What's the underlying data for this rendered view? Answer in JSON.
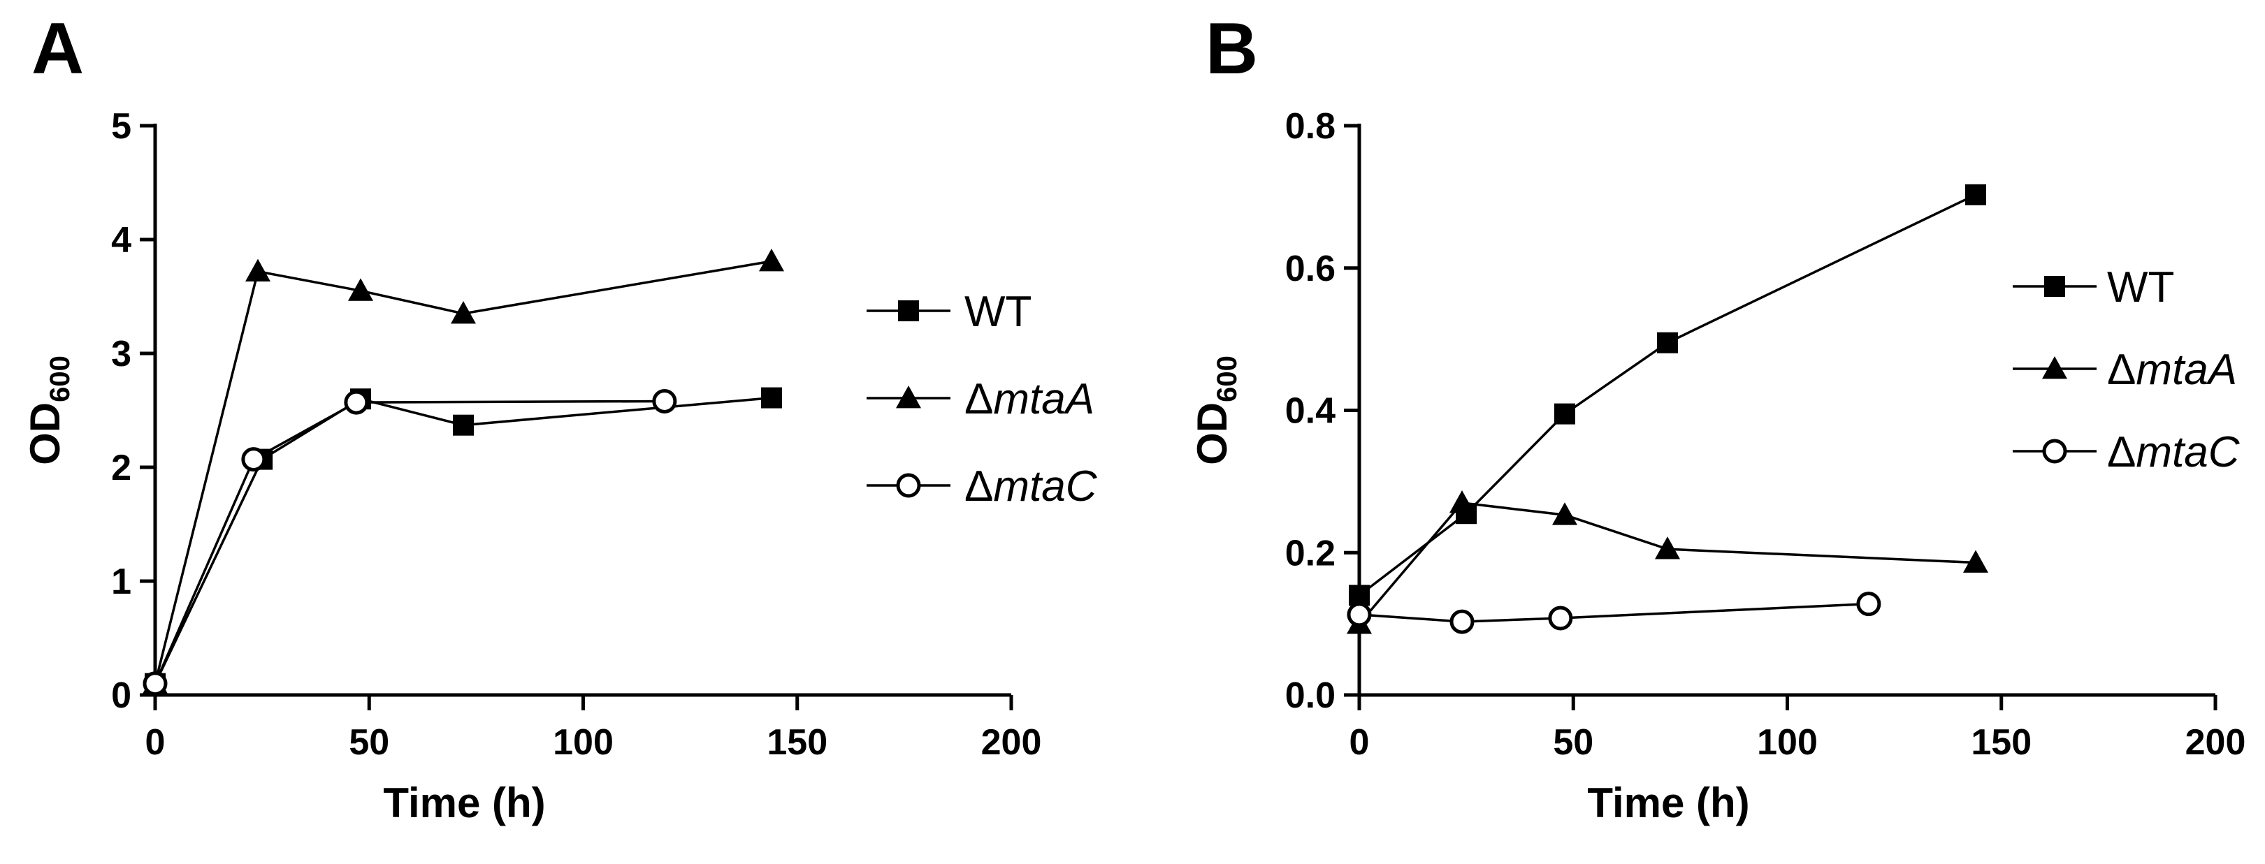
{
  "chart_data": [
    {
      "panel": "A",
      "type": "line",
      "xlabel": "Time (h)",
      "ylabel": "OD",
      "ylabel_sub": "600",
      "xlim": [
        0,
        200
      ],
      "ylim": [
        0,
        5
      ],
      "xticks": [
        "0",
        "50",
        "100",
        "150",
        "200"
      ],
      "yticks": [
        "0",
        "1",
        "2",
        "3",
        "4",
        "5"
      ],
      "legend_position": "right",
      "series": [
        {
          "name": "WT",
          "marker": "square",
          "x": [
            0,
            25,
            48,
            72,
            144
          ],
          "values": [
            0.1,
            2.07,
            2.6,
            2.37,
            2.61
          ]
        },
        {
          "name": "ΔmtaA",
          "name_prefix": "Δ",
          "name_italic": "mtaA",
          "marker": "triangle",
          "x": [
            0,
            24,
            48,
            72,
            144
          ],
          "values": [
            0.1,
            3.72,
            3.55,
            3.35,
            3.81
          ]
        },
        {
          "name": "ΔmtaC",
          "name_prefix": "Δ",
          "name_italic": "mtaC",
          "marker": "circle",
          "x": [
            0,
            23,
            47,
            119
          ],
          "values": [
            0.1,
            2.07,
            2.57,
            2.58
          ]
        }
      ]
    },
    {
      "panel": "B",
      "type": "line",
      "xlabel": "Time (h)",
      "ylabel": "OD",
      "ylabel_sub": "600",
      "xlim": [
        0,
        200
      ],
      "ylim": [
        0,
        0.8
      ],
      "xticks": [
        "0",
        "50",
        "100",
        "150",
        "200"
      ],
      "yticks": [
        "0.0",
        "0.2",
        "0.4",
        "0.6",
        "0.8"
      ],
      "legend_position": "right",
      "series": [
        {
          "name": "WT",
          "marker": "square",
          "x": [
            0,
            25,
            48,
            72,
            144
          ],
          "values": [
            0.14,
            0.255,
            0.395,
            0.495,
            0.703
          ]
        },
        {
          "name": "ΔmtaA",
          "name_prefix": "Δ",
          "name_italic": "mtaA",
          "marker": "triangle",
          "x": [
            0,
            24,
            48,
            72,
            144
          ],
          "values": [
            0.1,
            0.27,
            0.253,
            0.205,
            0.186
          ]
        },
        {
          "name": "ΔmtaC",
          "name_prefix": "Δ",
          "name_italic": "mtaC",
          "marker": "circle",
          "x": [
            0,
            24,
            47,
            119
          ],
          "values": [
            0.113,
            0.103,
            0.108,
            0.128
          ]
        }
      ]
    }
  ]
}
